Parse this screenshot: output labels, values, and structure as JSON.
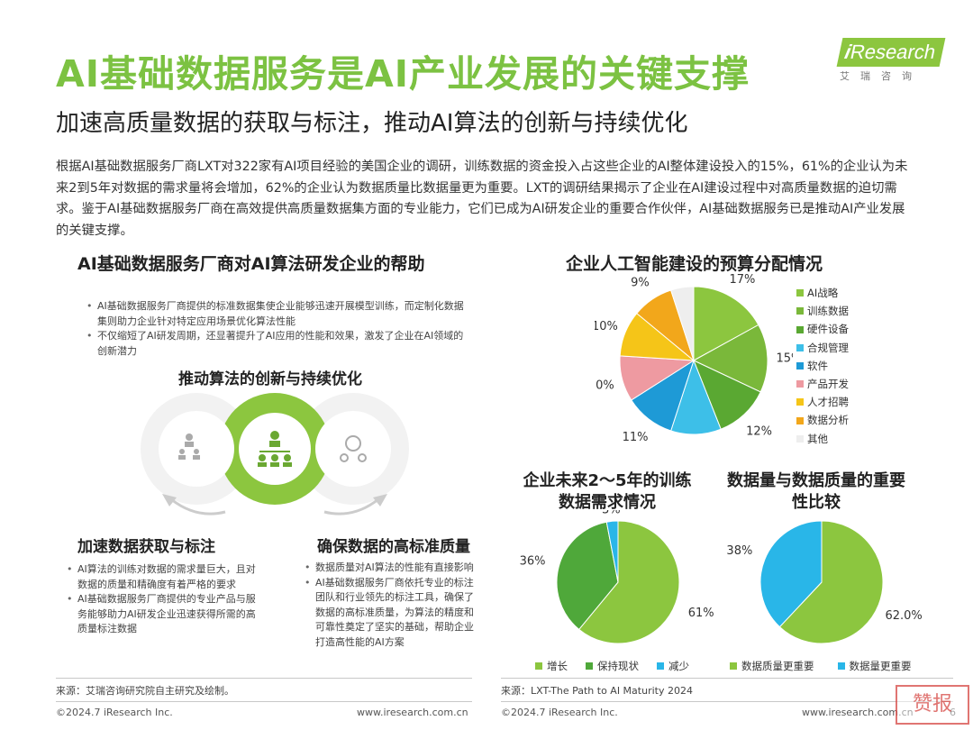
{
  "header": {
    "title": "AI基础数据服务是AI产业发展的关键支撑",
    "logo_text": "Research",
    "logo_sub": "艾瑞咨询",
    "subtitle": "加速高质量数据的获取与标注，推动AI算法的创新与持续优化"
  },
  "intro": "根据AI基础数据服务厂商LXT对322家有AI项目经验的美国企业的调研，训练数据的资金投入占这些企业的AI整体建设投入的15%，61%的企业认为未来2到5年对数据的需求量将会增加，62%的企业认为数据质量比数据量更为重要。LXT的调研结果揭示了企业在AI建设过程中对高质量数据的迫切需求。鉴于AI基础数据服务厂商在高效提供高质量数据集方面的专业能力，它们已成为AI研发企业的重要合作伙伴，AI基础数据服务已是推动AI产业发展的关键支撑。",
  "left": {
    "heading": "AI基础数据服务厂商对AI算法研发企业的帮助",
    "top_bullets": [
      "AI基础数据服务厂商提供的标准数据集使企业能够迅速开展模型训练，而定制化数据集则助力企业针对特定应用场景优化算法性能",
      "不仅缩短了AI研发周期，还显著提升了AI应用的性能和效果，激发了企业在AI领域的创新潜力"
    ],
    "diagram_title": "推动算法的创新与持续优化",
    "accel_heading": "加速数据获取与标注",
    "accel_bullets": [
      "AI算法的训练对数据的需求量巨大，且对数据的质量和精确度有着严格的要求",
      "AI基础数据服务厂商提供的专业产品与服务能够助力AI研发企业迅速获得所需的高质量标注数据"
    ],
    "quality_heading": "确保数据的高标准质量",
    "quality_bullets": [
      "数据质量对AI算法的性能有直接影响",
      "AI基础数据服务厂商依托专业的标注团队和行业领先的标注工具，确保了数据的高标准质量，为算法的精度和可靠性奠定了坚实的基础，帮助企业打造高性能的AI方案"
    ],
    "source": "来源：艾瑞咨询研究院自主研究及绘制。",
    "footer_copy": "©2024.7 iResearch Inc.",
    "footer_url": "www.iresearch.com.cn"
  },
  "right": {
    "source": "来源：LXT-The Path to AI Maturity 2024",
    "footer_copy": "©2024.7 iResearch Inc.",
    "footer_url": "www.iresearch.com.cn",
    "page_number": "6"
  },
  "watermark_text": "赞报",
  "colors": {
    "brand_green": "#7cc242",
    "light_green": "#8cc63f",
    "blue": "#29b6e8"
  },
  "chart_data": [
    {
      "type": "pie",
      "title": "企业人工智能建设的预算分配情况",
      "categories": [
        "AI战略",
        "训练数据",
        "硬件设备",
        "合规管理",
        "软件",
        "产品开发",
        "人才招聘",
        "数据分析",
        "其他"
      ],
      "values": [
        17,
        15,
        12,
        11,
        11,
        10,
        10,
        9,
        5
      ],
      "value_labels": [
        "17%",
        "15%",
        "12%",
        "11%",
        "11%",
        "10%",
        "10%",
        "9%",
        "5%"
      ],
      "colors": [
        "#8cc63f",
        "#7ab83a",
        "#5aa832",
        "#3dbfe8",
        "#1e9ad6",
        "#ee9aa1",
        "#f5c518",
        "#f2a71b",
        "#eeeeee"
      ],
      "legend_position": "right"
    },
    {
      "type": "pie",
      "title": "企业未来2～5年的训练数据需求情况",
      "categories": [
        "增长",
        "保持现状",
        "减少"
      ],
      "values": [
        61,
        36,
        3
      ],
      "value_labels": [
        "61%",
        "36%",
        "3%"
      ],
      "colors": [
        "#8cc63f",
        "#4fa83a",
        "#29b6e8"
      ],
      "legend_position": "bottom"
    },
    {
      "type": "pie",
      "title": "数据量与数据质量的重要性比较",
      "categories": [
        "数据质量更重要",
        "数据量更重要"
      ],
      "values": [
        62.0,
        38
      ],
      "value_labels": [
        "62.0%",
        "38%"
      ],
      "colors": [
        "#8cc63f",
        "#29b6e8"
      ],
      "legend_position": "bottom"
    }
  ]
}
